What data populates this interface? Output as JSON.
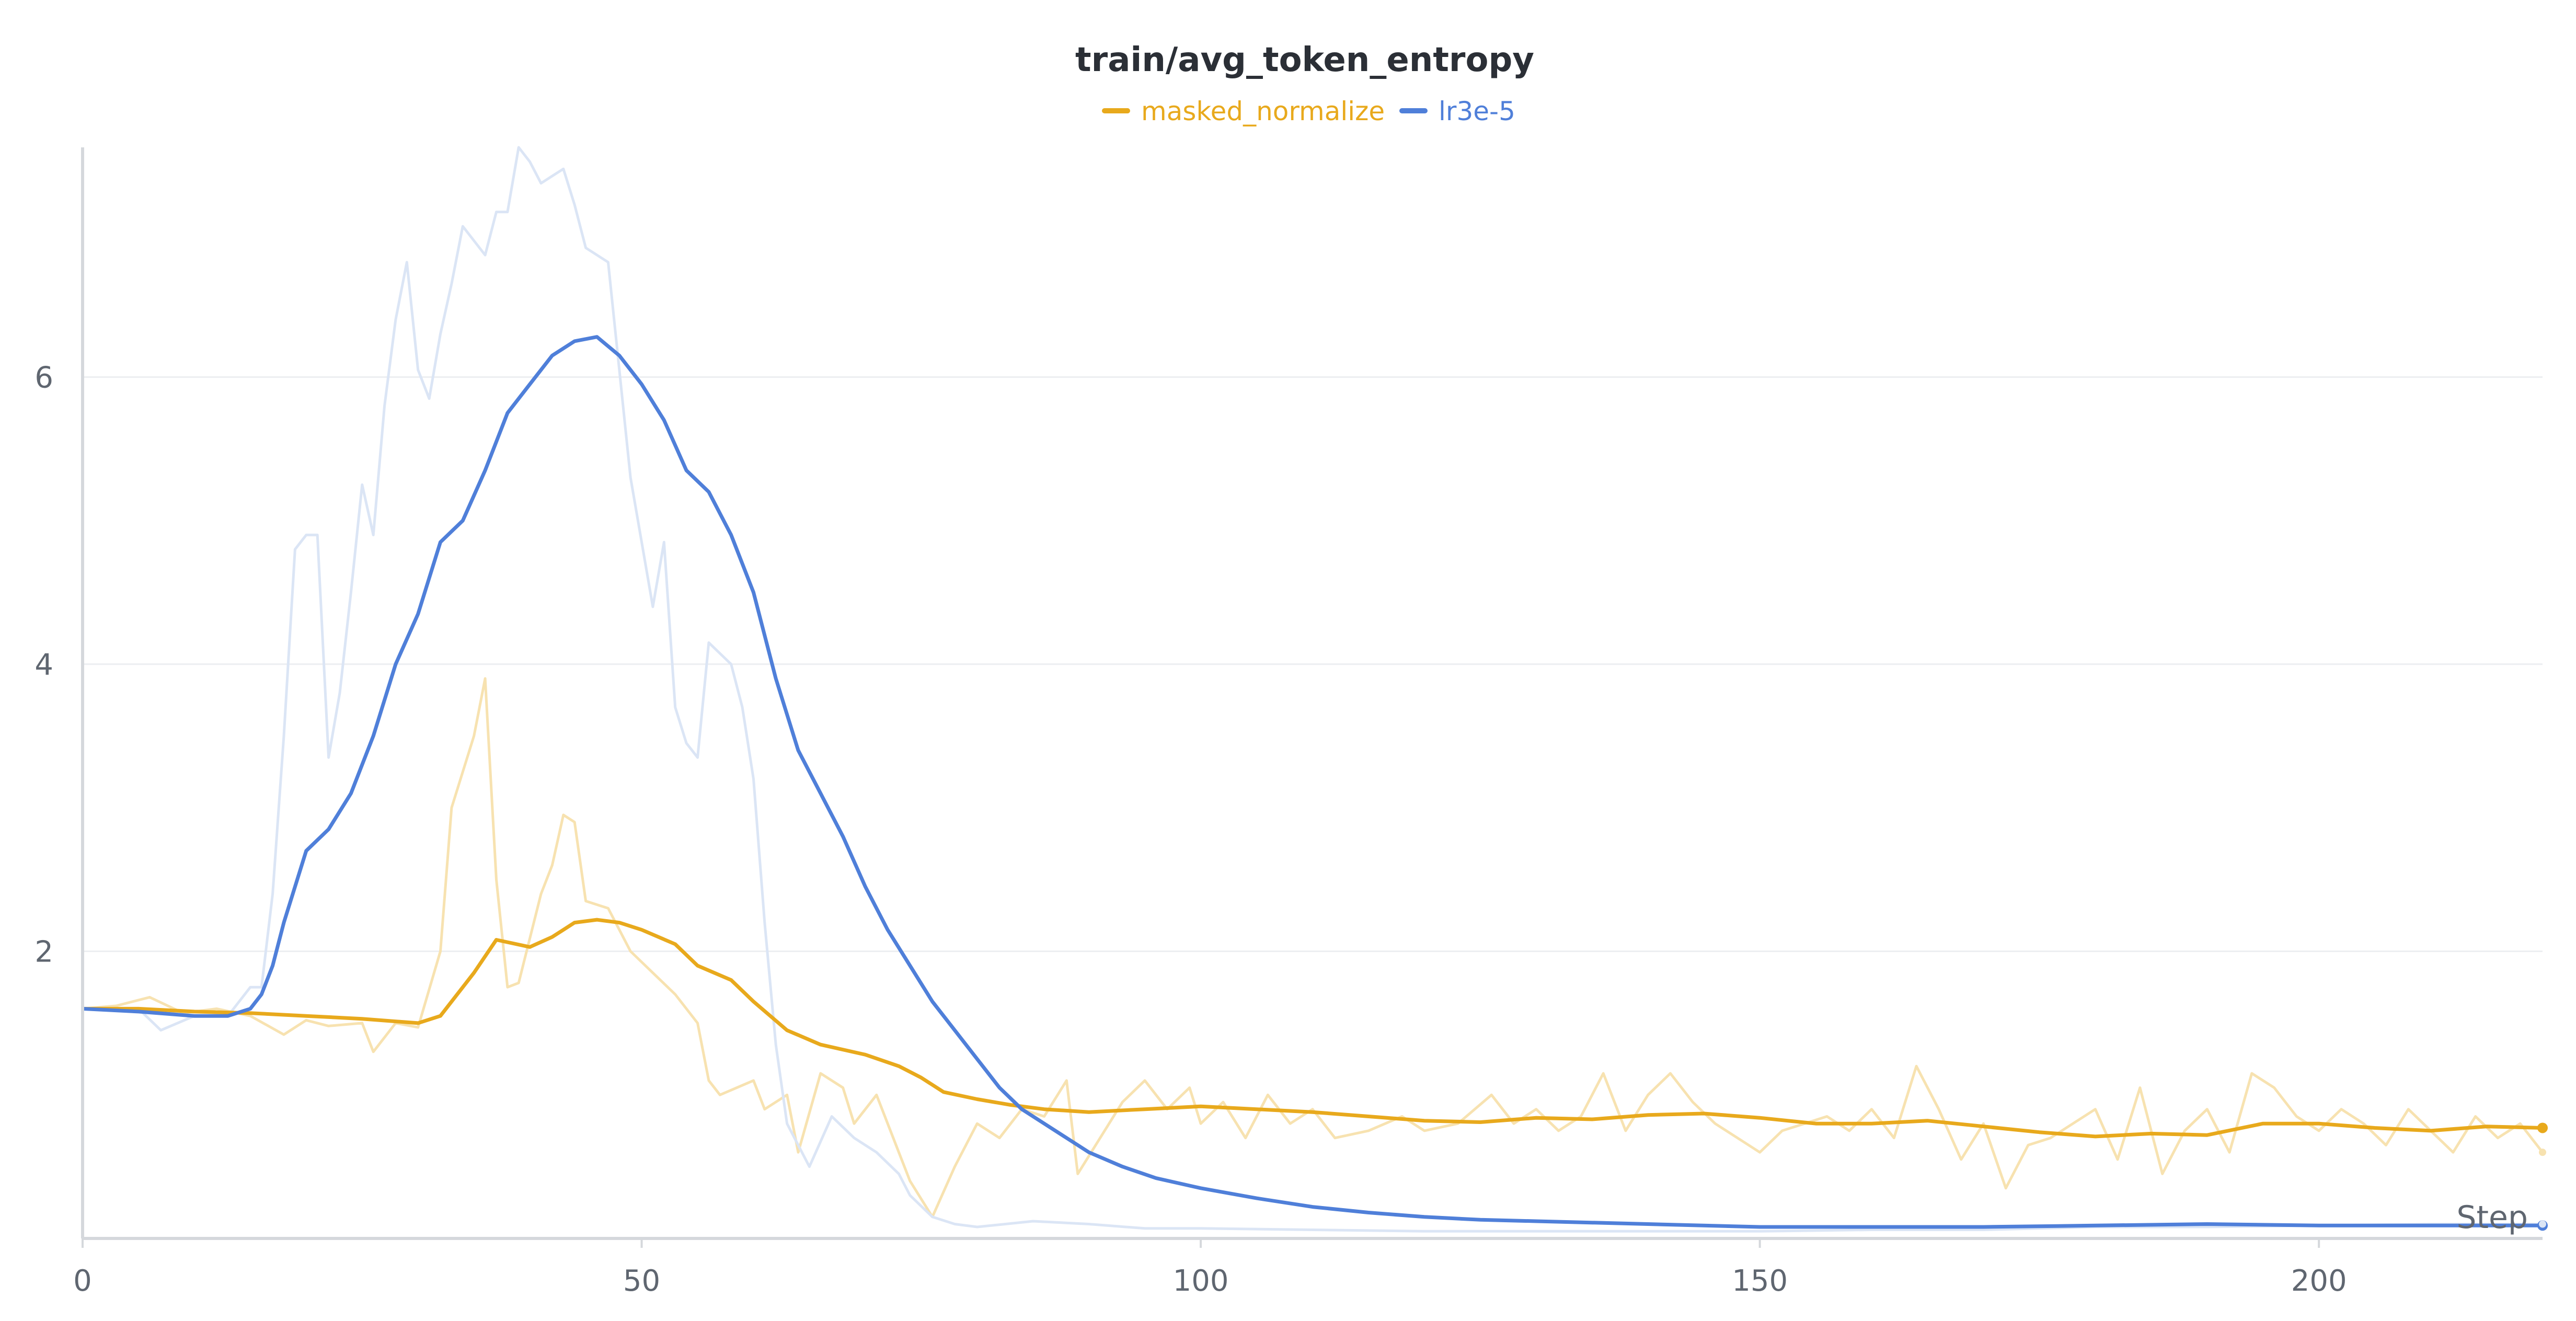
{
  "chart_data": {
    "type": "line",
    "title": "train/avg_token_entropy",
    "xlabel": "Step",
    "ylabel": "",
    "xlim": [
      0,
      220
    ],
    "ylim": [
      0,
      7.6
    ],
    "xticks": [
      0,
      50,
      100,
      150,
      200
    ],
    "yticks": [
      2,
      4,
      6
    ],
    "grid": "horizontal",
    "legend": "top-center",
    "series": [
      {
        "name": "masked_normalize",
        "color": "#e8a91c",
        "raw_color": "#f7e2b0",
        "smoothed": [
          [
            0,
            1.6
          ],
          [
            5,
            1.6
          ],
          [
            10,
            1.58
          ],
          [
            15,
            1.57
          ],
          [
            20,
            1.55
          ],
          [
            25,
            1.53
          ],
          [
            30,
            1.5
          ],
          [
            32,
            1.55
          ],
          [
            35,
            1.85
          ],
          [
            37,
            2.08
          ],
          [
            40,
            2.03
          ],
          [
            42,
            2.1
          ],
          [
            44,
            2.2
          ],
          [
            46,
            2.22
          ],
          [
            48,
            2.2
          ],
          [
            50,
            2.15
          ],
          [
            53,
            2.05
          ],
          [
            55,
            1.9
          ],
          [
            58,
            1.8
          ],
          [
            60,
            1.65
          ],
          [
            63,
            1.45
          ],
          [
            66,
            1.35
          ],
          [
            70,
            1.28
          ],
          [
            73,
            1.2
          ],
          [
            75,
            1.12
          ],
          [
            77,
            1.02
          ],
          [
            80,
            0.97
          ],
          [
            83,
            0.93
          ],
          [
            86,
            0.9
          ],
          [
            90,
            0.88
          ],
          [
            95,
            0.9
          ],
          [
            100,
            0.92
          ],
          [
            105,
            0.9
          ],
          [
            110,
            0.88
          ],
          [
            115,
            0.85
          ],
          [
            120,
            0.82
          ],
          [
            125,
            0.81
          ],
          [
            130,
            0.84
          ],
          [
            135,
            0.83
          ],
          [
            140,
            0.86
          ],
          [
            145,
            0.87
          ],
          [
            150,
            0.84
          ],
          [
            155,
            0.8
          ],
          [
            160,
            0.8
          ],
          [
            165,
            0.82
          ],
          [
            170,
            0.78
          ],
          [
            175,
            0.74
          ],
          [
            180,
            0.71
          ],
          [
            185,
            0.73
          ],
          [
            190,
            0.72
          ],
          [
            195,
            0.8
          ],
          [
            200,
            0.8
          ],
          [
            205,
            0.77
          ],
          [
            210,
            0.75
          ],
          [
            215,
            0.78
          ],
          [
            220,
            0.77
          ]
        ],
        "raw": [
          [
            0,
            1.6
          ],
          [
            3,
            1.62
          ],
          [
            6,
            1.68
          ],
          [
            9,
            1.57
          ],
          [
            12,
            1.6
          ],
          [
            15,
            1.55
          ],
          [
            18,
            1.42
          ],
          [
            20,
            1.52
          ],
          [
            22,
            1.48
          ],
          [
            25,
            1.5
          ],
          [
            26,
            1.3
          ],
          [
            28,
            1.5
          ],
          [
            30,
            1.47
          ],
          [
            32,
            2.0
          ],
          [
            33,
            3.0
          ],
          [
            35,
            3.5
          ],
          [
            36,
            3.9
          ],
          [
            37,
            2.5
          ],
          [
            38,
            1.75
          ],
          [
            39,
            1.78
          ],
          [
            41,
            2.4
          ],
          [
            42,
            2.6
          ],
          [
            43,
            2.95
          ],
          [
            44,
            2.9
          ],
          [
            45,
            2.35
          ],
          [
            47,
            2.3
          ],
          [
            49,
            2.0
          ],
          [
            51,
            1.85
          ],
          [
            53,
            1.7
          ],
          [
            55,
            1.5
          ],
          [
            56,
            1.1
          ],
          [
            57,
            1.0
          ],
          [
            60,
            1.1
          ],
          [
            61,
            0.9
          ],
          [
            63,
            1.0
          ],
          [
            64,
            0.6
          ],
          [
            66,
            1.15
          ],
          [
            68,
            1.05
          ],
          [
            69,
            0.8
          ],
          [
            71,
            1.0
          ],
          [
            73,
            0.6
          ],
          [
            74,
            0.4
          ],
          [
            76,
            0.15
          ],
          [
            78,
            0.5
          ],
          [
            80,
            0.8
          ],
          [
            82,
            0.7
          ],
          [
            84,
            0.9
          ],
          [
            86,
            0.85
          ],
          [
            88,
            1.1
          ],
          [
            89,
            0.45
          ],
          [
            91,
            0.7
          ],
          [
            93,
            0.95
          ],
          [
            95,
            1.1
          ],
          [
            97,
            0.9
          ],
          [
            99,
            1.05
          ],
          [
            100,
            0.8
          ],
          [
            102,
            0.95
          ],
          [
            104,
            0.7
          ],
          [
            106,
            1.0
          ],
          [
            108,
            0.8
          ],
          [
            110,
            0.9
          ],
          [
            112,
            0.7
          ],
          [
            115,
            0.75
          ],
          [
            118,
            0.85
          ],
          [
            120,
            0.75
          ],
          [
            123,
            0.8
          ],
          [
            126,
            1.0
          ],
          [
            128,
            0.8
          ],
          [
            130,
            0.9
          ],
          [
            132,
            0.75
          ],
          [
            134,
            0.85
          ],
          [
            136,
            1.15
          ],
          [
            138,
            0.75
          ],
          [
            140,
            1.0
          ],
          [
            142,
            1.15
          ],
          [
            144,
            0.95
          ],
          [
            146,
            0.8
          ],
          [
            148,
            0.7
          ],
          [
            150,
            0.6
          ],
          [
            152,
            0.75
          ],
          [
            154,
            0.8
          ],
          [
            156,
            0.85
          ],
          [
            158,
            0.75
          ],
          [
            160,
            0.9
          ],
          [
            162,
            0.7
          ],
          [
            164,
            1.2
          ],
          [
            166,
            0.9
          ],
          [
            168,
            0.55
          ],
          [
            170,
            0.8
          ],
          [
            172,
            0.35
          ],
          [
            174,
            0.65
          ],
          [
            176,
            0.7
          ],
          [
            178,
            0.8
          ],
          [
            180,
            0.9
          ],
          [
            182,
            0.55
          ],
          [
            184,
            1.05
          ],
          [
            186,
            0.45
          ],
          [
            188,
            0.75
          ],
          [
            190,
            0.9
          ],
          [
            192,
            0.6
          ],
          [
            194,
            1.15
          ],
          [
            196,
            1.05
          ],
          [
            198,
            0.85
          ],
          [
            200,
            0.75
          ],
          [
            202,
            0.9
          ],
          [
            204,
            0.8
          ],
          [
            206,
            0.65
          ],
          [
            208,
            0.9
          ],
          [
            210,
            0.75
          ],
          [
            212,
            0.6
          ],
          [
            214,
            0.85
          ],
          [
            216,
            0.7
          ],
          [
            218,
            0.8
          ],
          [
            220,
            0.6
          ]
        ]
      },
      {
        "name": "lr3e-5",
        "color": "#4f7fd9",
        "raw_color": "#dbe5f5",
        "smoothed": [
          [
            0,
            1.6
          ],
          [
            5,
            1.58
          ],
          [
            10,
            1.55
          ],
          [
            13,
            1.55
          ],
          [
            15,
            1.6
          ],
          [
            16,
            1.7
          ],
          [
            17,
            1.9
          ],
          [
            18,
            2.2
          ],
          [
            20,
            2.7
          ],
          [
            22,
            2.85
          ],
          [
            24,
            3.1
          ],
          [
            26,
            3.5
          ],
          [
            28,
            4.0
          ],
          [
            30,
            4.35
          ],
          [
            32,
            4.85
          ],
          [
            34,
            5.0
          ],
          [
            36,
            5.35
          ],
          [
            38,
            5.75
          ],
          [
            40,
            5.95
          ],
          [
            42,
            6.15
          ],
          [
            44,
            6.25
          ],
          [
            46,
            6.28
          ],
          [
            48,
            6.15
          ],
          [
            50,
            5.95
          ],
          [
            52,
            5.7
          ],
          [
            54,
            5.35
          ],
          [
            56,
            5.2
          ],
          [
            58,
            4.9
          ],
          [
            60,
            4.5
          ],
          [
            62,
            3.9
          ],
          [
            64,
            3.4
          ],
          [
            66,
            3.1
          ],
          [
            68,
            2.8
          ],
          [
            70,
            2.45
          ],
          [
            72,
            2.15
          ],
          [
            74,
            1.9
          ],
          [
            76,
            1.65
          ],
          [
            78,
            1.45
          ],
          [
            80,
            1.25
          ],
          [
            82,
            1.05
          ],
          [
            84,
            0.9
          ],
          [
            86,
            0.8
          ],
          [
            88,
            0.7
          ],
          [
            90,
            0.6
          ],
          [
            93,
            0.5
          ],
          [
            96,
            0.42
          ],
          [
            100,
            0.35
          ],
          [
            105,
            0.28
          ],
          [
            110,
            0.22
          ],
          [
            115,
            0.18
          ],
          [
            120,
            0.15
          ],
          [
            125,
            0.13
          ],
          [
            130,
            0.12
          ],
          [
            140,
            0.1
          ],
          [
            150,
            0.08
          ],
          [
            160,
            0.08
          ],
          [
            170,
            0.08
          ],
          [
            180,
            0.09
          ],
          [
            190,
            0.1
          ],
          [
            200,
            0.09
          ],
          [
            210,
            0.09
          ],
          [
            220,
            0.09
          ]
        ],
        "raw": [
          [
            0,
            1.6
          ],
          [
            5,
            1.6
          ],
          [
            7,
            1.45
          ],
          [
            10,
            1.55
          ],
          [
            13,
            1.55
          ],
          [
            15,
            1.75
          ],
          [
            16,
            1.75
          ],
          [
            17,
            2.4
          ],
          [
            18,
            3.5
          ],
          [
            19,
            4.8
          ],
          [
            20,
            4.9
          ],
          [
            21,
            4.9
          ],
          [
            22,
            3.35
          ],
          [
            23,
            3.8
          ],
          [
            24,
            4.5
          ],
          [
            25,
            5.25
          ],
          [
            26,
            4.9
          ],
          [
            27,
            5.8
          ],
          [
            28,
            6.4
          ],
          [
            29,
            6.8
          ],
          [
            30,
            6.05
          ],
          [
            31,
            5.85
          ],
          [
            32,
            6.3
          ],
          [
            33,
            6.65
          ],
          [
            34,
            7.05
          ],
          [
            35,
            6.95
          ],
          [
            36,
            6.85
          ],
          [
            37,
            7.15
          ],
          [
            38,
            7.15
          ],
          [
            39,
            7.6
          ],
          [
            40,
            7.5
          ],
          [
            41,
            7.35
          ],
          [
            42,
            7.4
          ],
          [
            43,
            7.45
          ],
          [
            44,
            7.2
          ],
          [
            45,
            6.9
          ],
          [
            47,
            6.8
          ],
          [
            49,
            5.3
          ],
          [
            51,
            4.4
          ],
          [
            52,
            4.85
          ],
          [
            53,
            3.7
          ],
          [
            54,
            3.45
          ],
          [
            55,
            3.35
          ],
          [
            56,
            4.15
          ],
          [
            58,
            4.0
          ],
          [
            59,
            3.7
          ],
          [
            60,
            3.2
          ],
          [
            61,
            2.2
          ],
          [
            62,
            1.35
          ],
          [
            63,
            0.8
          ],
          [
            65,
            0.5
          ],
          [
            67,
            0.85
          ],
          [
            69,
            0.7
          ],
          [
            71,
            0.6
          ],
          [
            73,
            0.45
          ],
          [
            74,
            0.3
          ],
          [
            76,
            0.15
          ],
          [
            78,
            0.1
          ],
          [
            80,
            0.08
          ],
          [
            85,
            0.12
          ],
          [
            90,
            0.1
          ],
          [
            95,
            0.07
          ],
          [
            100,
            0.07
          ],
          [
            110,
            0.06
          ],
          [
            120,
            0.05
          ],
          [
            130,
            0.05
          ],
          [
            140,
            0.05
          ],
          [
            150,
            0.05
          ],
          [
            160,
            0.06
          ],
          [
            170,
            0.06
          ],
          [
            180,
            0.08
          ],
          [
            190,
            0.08
          ],
          [
            200,
            0.09
          ],
          [
            210,
            0.1
          ],
          [
            220,
            0.1
          ]
        ]
      }
    ]
  }
}
